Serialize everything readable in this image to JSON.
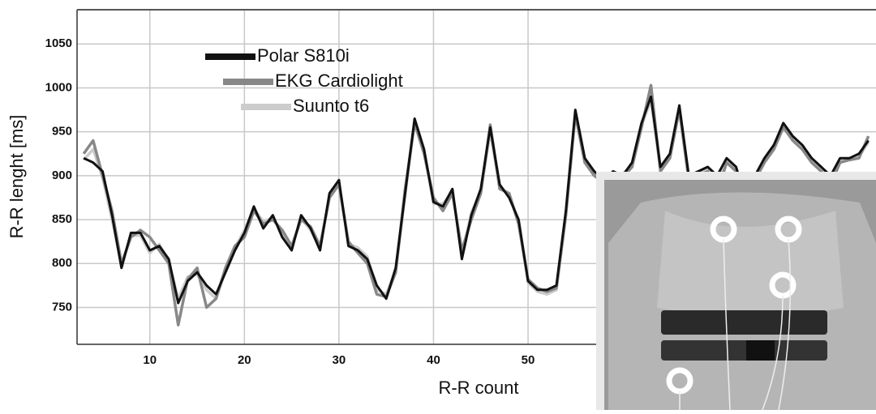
{
  "chart_data": {
    "type": "line",
    "x_label": "R-R count",
    "y_label": "R-R lenght [ms]",
    "x": [
      3,
      4,
      5,
      6,
      7,
      8,
      9,
      10,
      11,
      12,
      13,
      14,
      15,
      16,
      17,
      18,
      19,
      20,
      21,
      22,
      23,
      24,
      25,
      26,
      27,
      28,
      29,
      30,
      31,
      32,
      33,
      34,
      35,
      36,
      37,
      38,
      39,
      40,
      41,
      42,
      43,
      44,
      45,
      46,
      47,
      48,
      49,
      50,
      51,
      52,
      53,
      54,
      55,
      56,
      57,
      58,
      59,
      60,
      61,
      62,
      63,
      64,
      65,
      66,
      67,
      68,
      69,
      70,
      71,
      72,
      73,
      74,
      75,
      76,
      77,
      78,
      79,
      80,
      81,
      82,
      83,
      84,
      85,
      86
    ],
    "series": [
      {
        "name": "Polar S810i",
        "color": "#111111",
        "values": [
          920,
          915,
          905,
          855,
          795,
          835,
          835,
          815,
          820,
          805,
          755,
          780,
          790,
          775,
          765,
          790,
          815,
          835,
          865,
          840,
          855,
          830,
          815,
          855,
          840,
          815,
          880,
          895,
          820,
          815,
          805,
          775,
          760,
          795,
          880,
          965,
          930,
          870,
          865,
          885,
          805,
          855,
          885,
          955,
          890,
          875,
          850,
          780,
          770,
          770,
          775,
          860,
          975,
          920,
          905,
          895,
          905,
          900,
          915,
          960,
          990,
          910,
          925,
          980,
          900,
          905,
          910,
          900,
          920,
          910,
          875,
          900,
          920,
          935,
          960,
          945,
          935,
          920,
          910,
          900,
          920,
          920,
          925,
          940
        ]
      },
      {
        "name": "EKG Cardiolight",
        "color": "#888888",
        "values": [
          925,
          940,
          900,
          860,
          800,
          830,
          838,
          830,
          815,
          800,
          730,
          782,
          795,
          750,
          760,
          795,
          820,
          830,
          860,
          845,
          850,
          838,
          820,
          850,
          842,
          820,
          875,
          890,
          825,
          812,
          800,
          765,
          762,
          790,
          885,
          960,
          925,
          875,
          860,
          880,
          815,
          850,
          880,
          958,
          885,
          880,
          845,
          782,
          772,
          768,
          772,
          855,
          970,
          915,
          900,
          892,
          900,
          898,
          910,
          955,
          1003,
          905,
          920,
          975,
          895,
          900,
          905,
          880,
          915,
          905,
          870,
          895,
          915,
          930,
          955,
          940,
          930,
          915,
          905,
          890,
          915,
          918,
          920,
          945
        ]
      },
      {
        "name": "Suunto t6",
        "color": "#cccccc",
        "values": [
          918,
          930,
          898,
          850,
          798,
          832,
          832,
          812,
          822,
          802,
          760,
          785,
          788,
          770,
          760,
          792,
          818,
          838,
          862,
          848,
          852,
          835,
          818,
          852,
          838,
          818,
          878,
          892,
          822,
          818,
          808,
          770,
          765,
          792,
          878,
          962,
          928,
          868,
          868,
          882,
          810,
          858,
          882,
          950,
          888,
          878,
          848,
          778,
          768,
          765,
          770,
          858,
          972,
          918,
          902,
          890,
          902,
          902,
          912,
          958,
          985,
          908,
          922,
          978,
          898,
          902,
          908,
          895,
          918,
          908,
          872,
          898,
          918,
          932,
          958,
          942,
          932,
          918,
          908,
          895,
          918,
          918,
          922,
          938
        ]
      }
    ],
    "xlim": [
      2.3,
      86.8
    ],
    "ylim": [
      708,
      1089
    ],
    "xticks": [
      10,
      20,
      30,
      40,
      50
    ],
    "yticks": [
      750,
      800,
      850,
      900,
      950,
      1000,
      1050
    ],
    "grid": true
  }
}
